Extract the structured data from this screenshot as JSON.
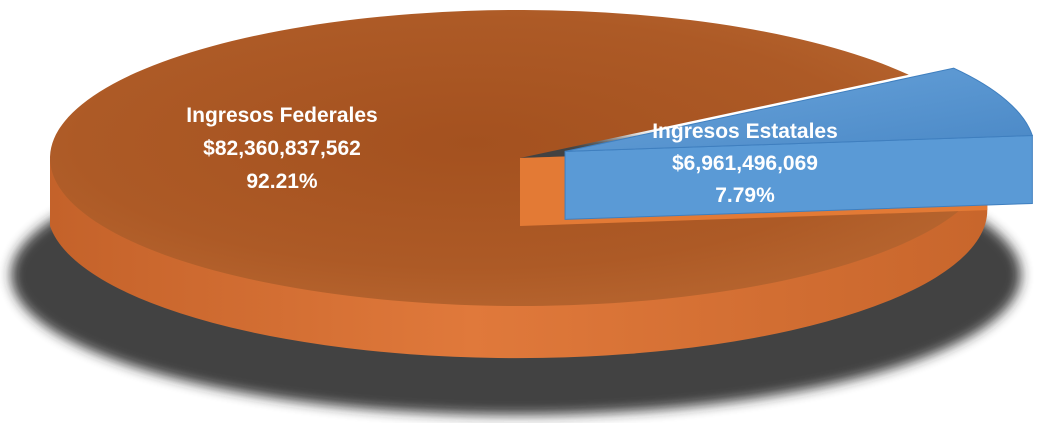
{
  "chart_data": {
    "type": "pie",
    "title": "",
    "slices": [
      {
        "label": "Ingresos Federales",
        "value_text": "$82,360,837,562",
        "percent_text": "92.21%",
        "value": 82360837562,
        "percent": 92.21,
        "color": "#d9702e"
      },
      {
        "label": "Ingresos Estatales",
        "value_text": "$6,961,496,069",
        "percent_text": "7.79%",
        "value": 6961496069,
        "percent": 7.79,
        "color": "#5b9bd5"
      }
    ]
  }
}
